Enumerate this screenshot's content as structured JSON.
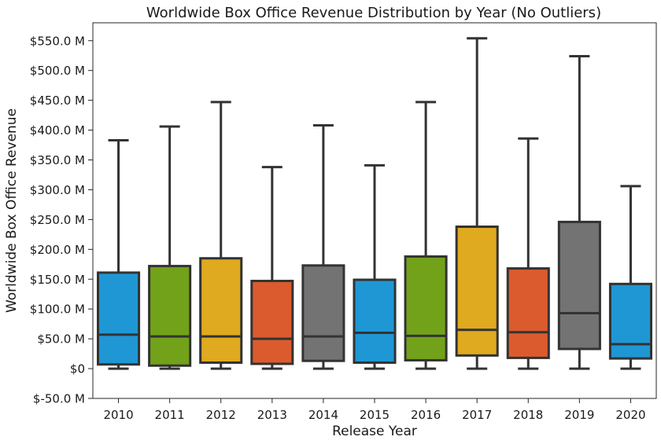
{
  "chart_data": {
    "type": "box",
    "title": "Worldwide Box Office Revenue Distribution by Year (No Outliers)",
    "xlabel": "Release Year",
    "ylabel": "Worldwide Box Office Revenue",
    "ylim": [
      -50,
      580
    ],
    "y_unit": "M USD",
    "y_ticks": [
      {
        "value": -50,
        "label": "$-50.0 M"
      },
      {
        "value": 0,
        "label": "$0"
      },
      {
        "value": 50,
        "label": "$50.0 M"
      },
      {
        "value": 100,
        "label": "$100.0 M"
      },
      {
        "value": 150,
        "label": "$150.0 M"
      },
      {
        "value": 200,
        "label": "$200.0 M"
      },
      {
        "value": 250,
        "label": "$250.0 M"
      },
      {
        "value": 300,
        "label": "$300.0 M"
      },
      {
        "value": 350,
        "label": "$350.0 M"
      },
      {
        "value": 400,
        "label": "$400.0 M"
      },
      {
        "value": 450,
        "label": "$450.0 M"
      },
      {
        "value": 500,
        "label": "$500.0 M"
      },
      {
        "value": 550,
        "label": "$550.0 M"
      }
    ],
    "grid": false,
    "legend": "none",
    "categories": [
      "2010",
      "2011",
      "2012",
      "2013",
      "2014",
      "2015",
      "2016",
      "2017",
      "2018",
      "2019",
      "2020"
    ],
    "boxes": [
      {
        "category": "2010",
        "whisker_low": 0,
        "q1": 7,
        "median": 57,
        "q3": 161,
        "whisker_high": 383,
        "color": "#1f97d4"
      },
      {
        "category": "2011",
        "whisker_low": 0,
        "q1": 5,
        "median": 54,
        "q3": 172,
        "whisker_high": 406,
        "color": "#72a219"
      },
      {
        "category": "2012",
        "whisker_low": 0,
        "q1": 10,
        "median": 54,
        "q3": 185,
        "whisker_high": 447,
        "color": "#dfaa1f"
      },
      {
        "category": "2013",
        "whisker_low": 0,
        "q1": 8,
        "median": 50,
        "q3": 147,
        "whisker_high": 338,
        "color": "#dc5b2e"
      },
      {
        "category": "2014",
        "whisker_low": 0,
        "q1": 13,
        "median": 54,
        "q3": 173,
        "whisker_high": 408,
        "color": "#737373"
      },
      {
        "category": "2015",
        "whisker_low": 0,
        "q1": 10,
        "median": 60,
        "q3": 149,
        "whisker_high": 341,
        "color": "#1f97d4"
      },
      {
        "category": "2016",
        "whisker_low": 0,
        "q1": 14,
        "median": 55,
        "q3": 188,
        "whisker_high": 447,
        "color": "#72a219"
      },
      {
        "category": "2017",
        "whisker_low": 0,
        "q1": 22,
        "median": 65,
        "q3": 238,
        "whisker_high": 554,
        "color": "#dfaa1f"
      },
      {
        "category": "2018",
        "whisker_low": 0,
        "q1": 18,
        "median": 61,
        "q3": 168,
        "whisker_high": 386,
        "color": "#dc5b2e"
      },
      {
        "category": "2019",
        "whisker_low": 0,
        "q1": 33,
        "median": 93,
        "q3": 246,
        "whisker_high": 524,
        "color": "#737373"
      },
      {
        "category": "2020",
        "whisker_low": 0,
        "q1": 17,
        "median": 41,
        "q3": 142,
        "whisker_high": 306,
        "color": "#1f97d4"
      }
    ]
  }
}
